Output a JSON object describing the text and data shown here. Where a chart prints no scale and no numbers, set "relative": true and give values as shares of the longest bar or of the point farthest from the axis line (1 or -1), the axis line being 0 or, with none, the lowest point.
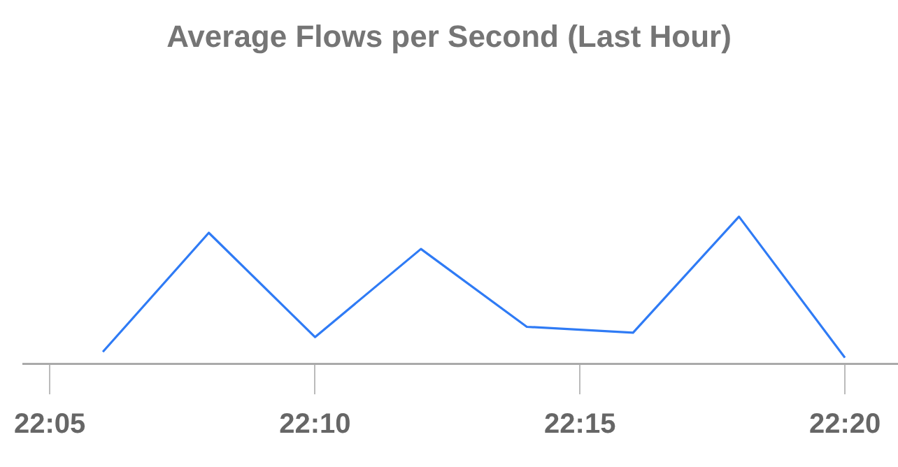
{
  "chart_data": {
    "type": "line",
    "title": "Average Flows per Second (Last Hour)",
    "relative": true,
    "x": [
      22.1,
      22.1333,
      22.1667,
      22.2,
      22.2333,
      22.2667,
      22.3,
      22.3333
    ],
    "series": [
      {
        "color": "#2f7bf5",
        "values": [
          0.08,
          0.89,
          0.18,
          0.78,
          0.25,
          0.21,
          1,
          0.04
        ]
      }
    ],
    "xlim": [
      22.075,
      22.35
    ],
    "xticks": [
      {
        "value": 22.0833,
        "label": "22:05"
      },
      {
        "value": 22.1667,
        "label": "22:10"
      },
      {
        "value": 22.25,
        "label": "22:15"
      },
      {
        "value": 22.3333,
        "label": "22:20"
      }
    ],
    "legend": false,
    "marker": "none",
    "line_style": "solid"
  }
}
